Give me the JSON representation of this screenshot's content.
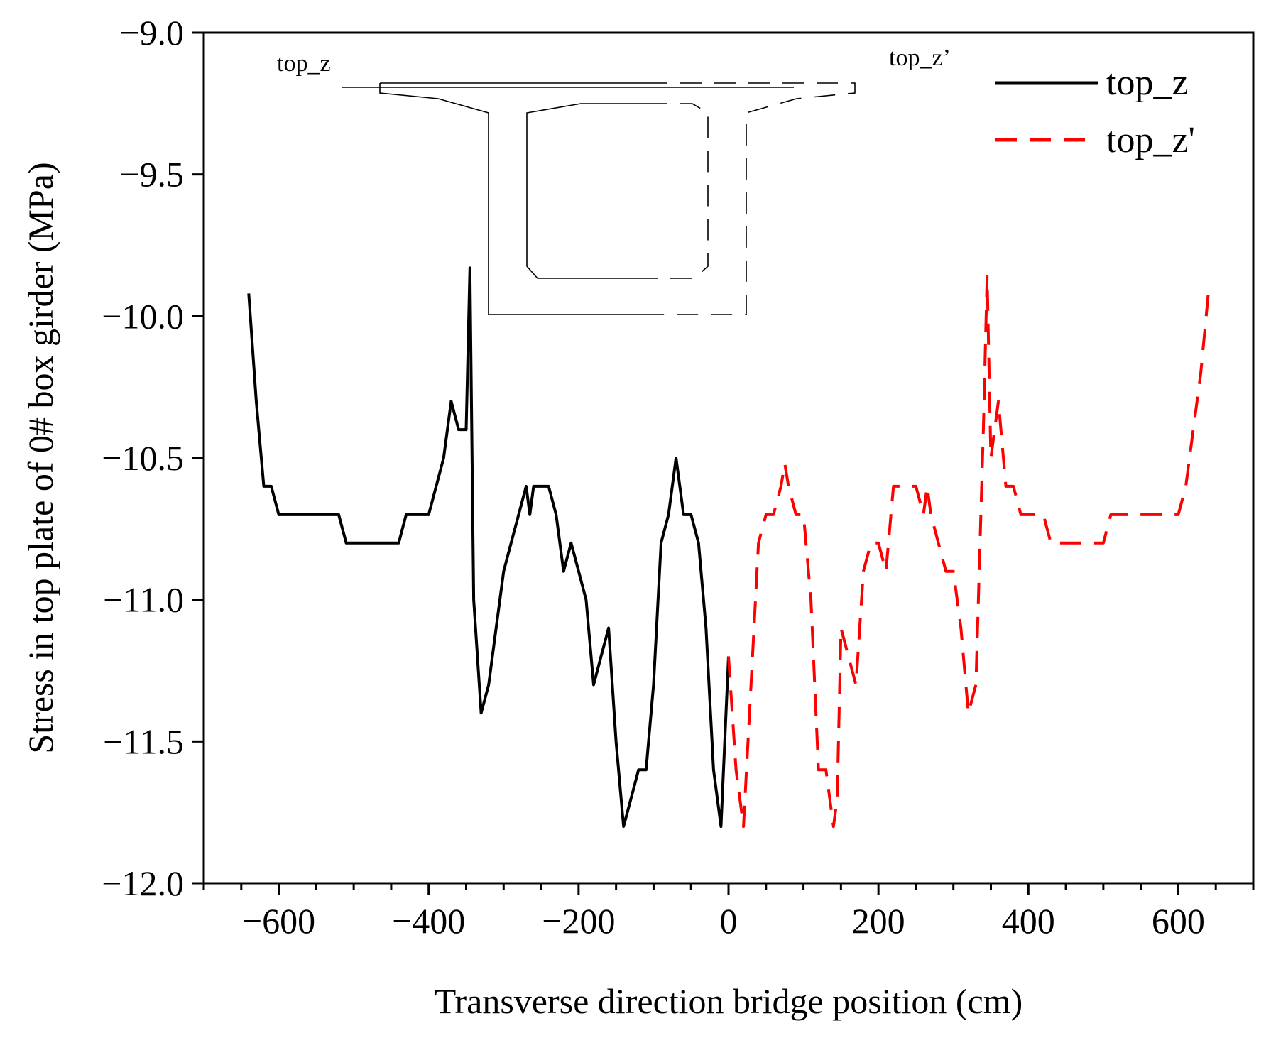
{
  "chart_data": {
    "type": "line",
    "title": "",
    "xlabel": "Transverse direction bridge position (cm)",
    "ylabel": "Stress in top plate of 0# box girder (MPa)",
    "xlim": [
      -700,
      700
    ],
    "ylim": [
      -12.0,
      -9.0
    ],
    "xticks": [
      -600,
      -400,
      -200,
      0,
      200,
      400,
      600
    ],
    "xtick_labels": [
      "−600",
      "−400",
      "−200",
      "0",
      "200",
      "400",
      "600"
    ],
    "yticks": [
      -9.0,
      -9.5,
      -10.0,
      -10.5,
      -11.0,
      -11.5,
      -12.0
    ],
    "ytick_labels": [
      "−9.0",
      "−9.5",
      "−10.0",
      "−10.5",
      "−11.0",
      "−11.5",
      "−12.0"
    ],
    "legend_position": "top-right",
    "series": [
      {
        "name": "top_z",
        "color": "#000000",
        "style": "solid",
        "x": [
          -640,
          -630,
          -620,
          -610,
          -600,
          -590,
          -580,
          -570,
          -560,
          -520,
          -510,
          -500,
          -490,
          -480,
          -470,
          -440,
          -430,
          -420,
          -410,
          -400,
          -390,
          -380,
          -370,
          -360,
          -350,
          -345,
          -340,
          -330,
          -320,
          -310,
          -300,
          -290,
          -280,
          -270,
          -265,
          -260,
          -250,
          -240,
          -230,
          -220,
          -210,
          -200,
          -190,
          -180,
          -170,
          -160,
          -150,
          -140,
          -130,
          -120,
          -110,
          -100,
          -90,
          -80,
          -70,
          -60,
          -50,
          -40,
          -30,
          -20,
          -10,
          0
        ],
        "values": [
          -9.92,
          -10.3,
          -10.6,
          -10.6,
          -10.7,
          -10.7,
          -10.7,
          -10.7,
          -10.7,
          -10.7,
          -10.8,
          -10.8,
          -10.8,
          -10.8,
          -10.8,
          -10.8,
          -10.7,
          -10.7,
          -10.7,
          -10.7,
          -10.6,
          -10.5,
          -10.3,
          -10.4,
          -10.4,
          -9.83,
          -11.0,
          -11.4,
          -11.3,
          -11.1,
          -10.9,
          -10.8,
          -10.7,
          -10.6,
          -10.7,
          -10.6,
          -10.6,
          -10.6,
          -10.7,
          -10.9,
          -10.8,
          -10.9,
          -11.0,
          -11.3,
          -11.2,
          -11.1,
          -11.5,
          -11.8,
          -11.7,
          -11.6,
          -11.6,
          -11.3,
          -10.8,
          -10.7,
          -10.5,
          -10.7,
          -10.7,
          -10.8,
          -11.1,
          -11.6,
          -11.8,
          -11.2
        ]
      },
      {
        "name": "top_z'",
        "color": "#ff0000",
        "style": "dashed",
        "x": [
          0,
          10,
          20,
          30,
          40,
          50,
          60,
          70,
          75,
          80,
          90,
          100,
          110,
          120,
          130,
          140,
          145,
          150,
          160,
          170,
          180,
          190,
          200,
          210,
          220,
          230,
          240,
          250,
          260,
          265,
          270,
          280,
          290,
          300,
          310,
          320,
          330,
          340,
          345,
          350,
          360,
          370,
          380,
          390,
          400,
          410,
          420,
          430,
          470,
          480,
          490,
          500,
          510,
          520,
          560,
          570,
          580,
          600,
          610,
          620,
          630,
          640
        ],
        "values": [
          -11.2,
          -11.6,
          -11.8,
          -11.3,
          -10.8,
          -10.7,
          -10.7,
          -10.6,
          -10.52,
          -10.6,
          -10.7,
          -10.7,
          -11.0,
          -11.6,
          -11.6,
          -11.8,
          -11.7,
          -11.1,
          -11.2,
          -11.3,
          -10.9,
          -10.8,
          -10.8,
          -10.9,
          -10.6,
          -10.6,
          -10.6,
          -10.6,
          -10.7,
          -10.6,
          -10.7,
          -10.8,
          -10.9,
          -10.9,
          -11.1,
          -11.4,
          -11.3,
          -10.4,
          -9.86,
          -10.5,
          -10.3,
          -10.6,
          -10.6,
          -10.7,
          -10.7,
          -10.7,
          -10.7,
          -10.8,
          -10.8,
          -10.8,
          -10.8,
          -10.8,
          -10.7,
          -10.7,
          -10.7,
          -10.7,
          -10.7,
          -10.7,
          -10.6,
          -10.4,
          -10.2,
          -9.92
        ]
      }
    ],
    "annotations": {
      "inset_label_left": "top_z",
      "inset_label_right": "top_z’",
      "inset_description": "box girder cross-section schematic"
    }
  }
}
